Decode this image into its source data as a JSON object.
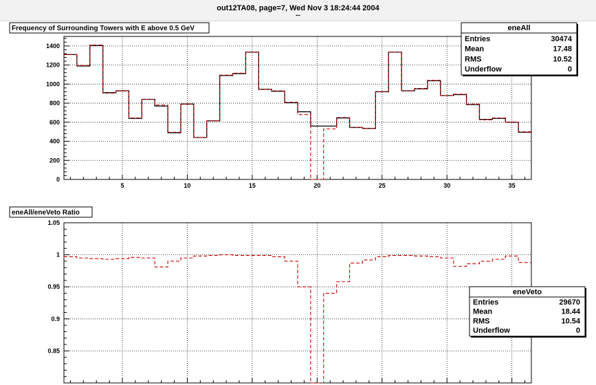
{
  "header": {
    "title": "out12TA08, page=7,  Wed Nov  3 18:24:44 2004",
    "subtitle": "--"
  },
  "chart_data": [
    {
      "type": "histogram",
      "title": "Frequency of Surrounding Towers with E above 0.5 GeV",
      "xlim": [
        0.5,
        36.5
      ],
      "ylim": [
        0,
        1500
      ],
      "x_ticks": [
        5,
        10,
        15,
        20,
        25,
        30,
        35
      ],
      "y_ticks": [
        0,
        200,
        400,
        600,
        800,
        1000,
        1200,
        1400
      ],
      "grid": true,
      "series": [
        {
          "name": "eneAll",
          "color": "#000000",
          "style": "solid",
          "values": [
            1310,
            1190,
            1405,
            910,
            930,
            640,
            840,
            770,
            490,
            790,
            440,
            615,
            1090,
            1110,
            1335,
            945,
            925,
            805,
            710,
            560,
            560,
            645,
            545,
            535,
            920,
            1335,
            930,
            950,
            1035,
            880,
            890,
            785,
            630,
            640,
            600,
            495
          ]
        },
        {
          "name": "eneVeto",
          "color": "#cc0000",
          "style": "dashed",
          "values": [
            1310,
            1195,
            1410,
            905,
            930,
            645,
            840,
            780,
            495,
            790,
            440,
            615,
            1095,
            1115,
            1335,
            945,
            930,
            810,
            680,
            0,
            530,
            650,
            545,
            535,
            920,
            1335,
            930,
            955,
            1040,
            880,
            895,
            790,
            625,
            645,
            600,
            500
          ]
        }
      ],
      "stats_box": {
        "name": "eneAll",
        "rows": [
          {
            "label": "Entries",
            "value": "30474"
          },
          {
            "label": "Mean",
            "value": "17.48"
          },
          {
            "label": "RMS",
            "value": "10.52"
          },
          {
            "label": "Underflow",
            "value": "0"
          }
        ]
      }
    },
    {
      "type": "histogram",
      "title": "eneAll/eneVeto Ratio",
      "xlim": [
        0.5,
        36.5
      ],
      "ylim": [
        0.8,
        1.05
      ],
      "x_ticks": [
        5,
        10,
        15,
        20,
        25,
        30,
        35
      ],
      "y_ticks": [
        0.85,
        0.9,
        0.95,
        1,
        1.05
      ],
      "y_tick_labels": [
        "0.85",
        "0.9",
        "0.95",
        "1",
        "1.05"
      ],
      "grid": true,
      "series": [
        {
          "name": "ratio",
          "color": "#cc0000",
          "style": "dashed",
          "values": [
            0.997,
            0.995,
            0.994,
            0.993,
            0.994,
            0.996,
            0.995,
            0.981,
            0.99,
            0.995,
            0.998,
            0.999,
            1.0,
            0.999,
            0.999,
            0.999,
            0.997,
            0.99,
            0.95,
            0.8,
            0.94,
            0.958,
            0.987,
            0.992,
            0.997,
            0.999,
            0.999,
            0.998,
            0.997,
            0.995,
            0.982,
            0.986,
            0.99,
            0.993,
            0.998,
            0.988
          ]
        }
      ],
      "stats_box": {
        "name": "eneVeto",
        "rows": [
          {
            "label": "Entries",
            "value": "29670"
          },
          {
            "label": "Mean",
            "value": "18.44"
          },
          {
            "label": "RMS",
            "value": "10.54"
          },
          {
            "label": "Underflow",
            "value": "0"
          }
        ]
      }
    }
  ]
}
